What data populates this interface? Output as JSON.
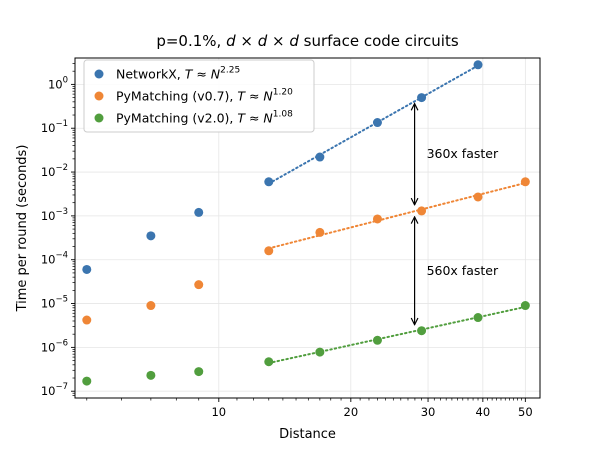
{
  "chart_data": {
    "type": "scatter",
    "title": "p=0.1%, d × d × d surface code circuits",
    "xlabel": "Distance",
    "ylabel": "Time per round (seconds)",
    "xscale": "log",
    "yscale": "log",
    "xlim": [
      4.7,
      54
    ],
    "ylim": [
      7e-08,
      4
    ],
    "grid": true,
    "legend_position": "top-left",
    "x_ticks": [
      {
        "value": 10,
        "label": "10"
      },
      {
        "value": 20,
        "label": "20"
      },
      {
        "value": 30,
        "label": "30"
      },
      {
        "value": 40,
        "label": "40"
      },
      {
        "value": 50,
        "label": "50"
      }
    ],
    "y_ticks": [
      {
        "value": 1e-07,
        "base": "10",
        "exp": "−7"
      },
      {
        "value": 1e-06,
        "base": "10",
        "exp": "−6"
      },
      {
        "value": 1e-05,
        "base": "10",
        "exp": "−5"
      },
      {
        "value": 0.0001,
        "base": "10",
        "exp": "−4"
      },
      {
        "value": 0.001,
        "base": "10",
        "exp": "−3"
      },
      {
        "value": 0.01,
        "base": "10",
        "exp": "−2"
      },
      {
        "value": 0.1,
        "base": "10",
        "exp": "−1"
      },
      {
        "value": 1,
        "base": "10",
        "exp": "0"
      }
    ],
    "series": [
      {
        "name": "NetworkX",
        "legend_formula": "T ≈ N",
        "legend_exponent": "2.25",
        "color": "#3b75af",
        "x": [
          5,
          7,
          9,
          13,
          17,
          23,
          29,
          39
        ],
        "y": [
          6e-05,
          0.00035,
          0.0012,
          0.006,
          0.022,
          0.135,
          0.5,
          2.8
        ],
        "fit_from_index": 3
      },
      {
        "name": "PyMatching (v0.7)",
        "legend_formula": "T ≈ N",
        "legend_exponent": "1.20",
        "color": "#ef8636",
        "x": [
          5,
          7,
          9,
          13,
          17,
          23,
          29,
          39,
          50
        ],
        "y": [
          4.2e-06,
          9e-06,
          2.7e-05,
          0.00016,
          0.00042,
          0.00085,
          0.0013,
          0.0027,
          0.006
        ],
        "fit_from_index": 3
      },
      {
        "name": "PyMatching (v2.0)",
        "legend_formula": "T ≈ N",
        "legend_exponent": "1.08",
        "color": "#519e3e",
        "x": [
          5,
          7,
          9,
          13,
          17,
          23,
          29,
          39,
          50
        ],
        "y": [
          1.7e-07,
          2.3e-07,
          2.8e-07,
          4.7e-07,
          7.8e-07,
          1.45e-06,
          2.4e-06,
          4.8e-06,
          9e-06
        ],
        "fit_from_index": 3
      }
    ],
    "annotations": [
      {
        "text": "360x faster",
        "x": 29,
        "y_from": 0.5,
        "y_to": 0.0013
      },
      {
        "text": "560x faster",
        "x": 29,
        "y_from": 0.0013,
        "y_to": 2.4e-06
      }
    ]
  }
}
